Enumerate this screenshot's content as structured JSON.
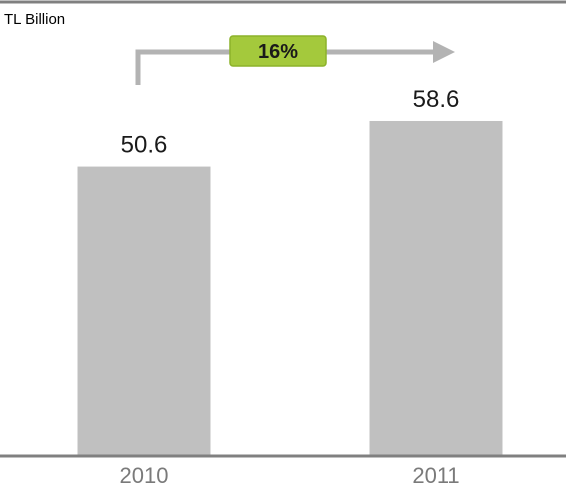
{
  "chart_data": {
    "type": "bar",
    "unit_label": "TL Billion",
    "categories": [
      "2010",
      "2011"
    ],
    "values": [
      50.6,
      58.6
    ],
    "value_labels": [
      "50.6",
      "58.6"
    ],
    "growth_label": "16%",
    "ylim": [
      0,
      70
    ],
    "grid": false,
    "colors": {
      "bar": "#c0c0c0",
      "axis": "#808080",
      "growth_badge": "#a4c93c",
      "growth_badge_border": "#8cb22a",
      "arrow": "#b3b3b3"
    }
  }
}
